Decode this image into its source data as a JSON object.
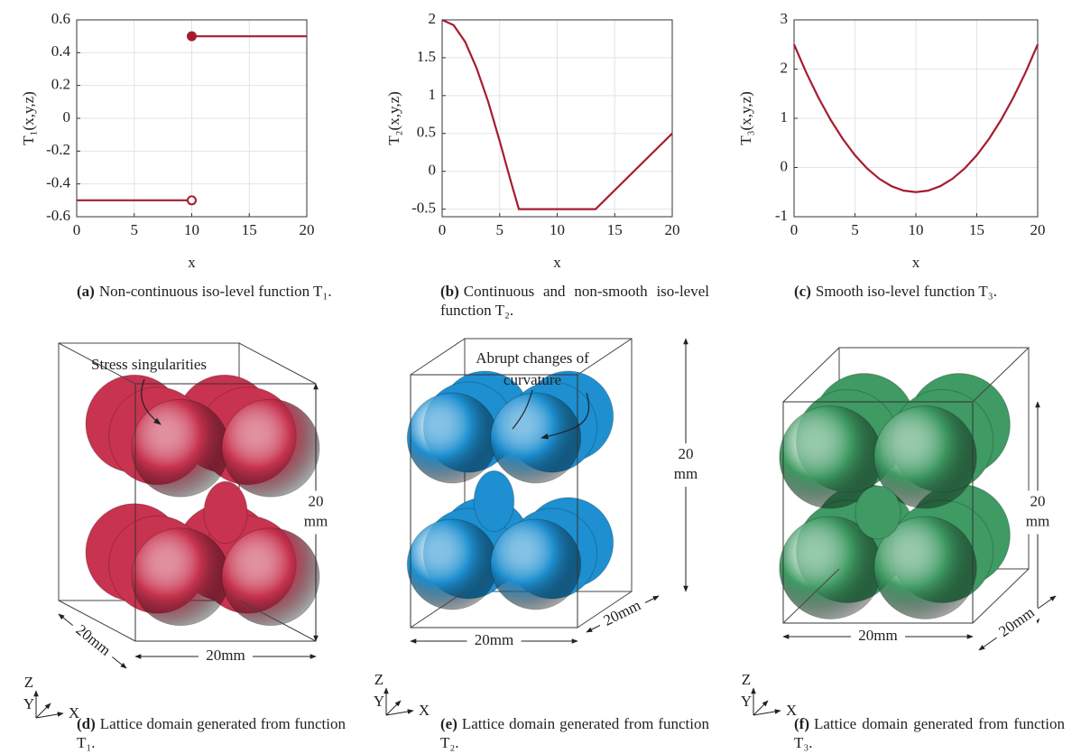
{
  "chart_data": [
    {
      "type": "line",
      "ylabel": "T₁(x,y,z)",
      "xlabel": "x",
      "xlim": [
        0,
        20
      ],
      "xticks": [
        0,
        5,
        10,
        15,
        20
      ],
      "ylim": [
        -0.6,
        0.6
      ],
      "yticks": [
        -0.6,
        -0.4,
        -0.2,
        0,
        0.2,
        0.4,
        0.6
      ],
      "grid": true,
      "series": [
        {
          "color": "#a51c30",
          "x": [
            0,
            10
          ],
          "values": [
            -0.5,
            -0.5
          ]
        },
        {
          "color": "#a51c30",
          "x": [
            10,
            20
          ],
          "values": [
            0.5,
            0.5
          ]
        }
      ],
      "markers": [
        {
          "x": 10,
          "y": -0.5,
          "filled": false,
          "color": "#a51c30"
        },
        {
          "x": 10,
          "y": 0.5,
          "filled": true,
          "color": "#a51c30"
        }
      ]
    },
    {
      "type": "line",
      "ylabel": "T₂(x,y,z)",
      "xlabel": "x",
      "xlim": [
        0,
        20
      ],
      "xticks": [
        0,
        5,
        10,
        15,
        20
      ],
      "ylim": [
        -0.6,
        2
      ],
      "yticks": [
        -0.5,
        0,
        0.5,
        1,
        1.5,
        2
      ],
      "grid": true,
      "series": [
        {
          "color": "#a51c30",
          "x": [
            0,
            1,
            2,
            3,
            4,
            5,
            6,
            6.67,
            13.33,
            20
          ],
          "values": [
            2,
            1.93,
            1.71,
            1.36,
            0.92,
            0.4,
            -0.15,
            -0.5,
            -0.5,
            0.5
          ]
        }
      ]
    },
    {
      "type": "line",
      "ylabel": "T₃(x,y,z)",
      "xlabel": "x",
      "xlim": [
        0,
        20
      ],
      "xticks": [
        0,
        5,
        10,
        15,
        20
      ],
      "ylim": [
        -1,
        3
      ],
      "yticks": [
        -1,
        0,
        1,
        2,
        3
      ],
      "grid": true,
      "series": [
        {
          "color": "#a51c30",
          "x": [
            0,
            1,
            2,
            3,
            4,
            5,
            6,
            7,
            8,
            9,
            10,
            11,
            12,
            13,
            14,
            15,
            16,
            17,
            18,
            19,
            20
          ],
          "values": [
            2.5,
            1.93,
            1.42,
            0.97,
            0.58,
            0.25,
            -0.02,
            -0.23,
            -0.38,
            -0.47,
            -0.5,
            -0.47,
            -0.38,
            -0.23,
            -0.02,
            0.25,
            0.58,
            0.97,
            1.42,
            1.93,
            2.5
          ]
        }
      ]
    }
  ],
  "renders": [
    {
      "color": "#c8334f",
      "annotation": [
        "Stress singularities"
      ],
      "height_label": [
        "20",
        "mm"
      ],
      "width_label": "20mm",
      "depth_label": "20mm",
      "axes": [
        "Z",
        "Y",
        "X"
      ]
    },
    {
      "color": "#1e8fd0",
      "annotation": [
        "Abrupt changes of",
        "curvature"
      ],
      "height_label": [
        "20",
        "mm"
      ],
      "width_label": "20mm",
      "depth_label": "20mm",
      "axes": [
        "Z",
        "Y",
        "X"
      ]
    },
    {
      "color": "#3f9a63",
      "annotation": [],
      "height_label": [
        "20",
        "mm"
      ],
      "width_label": "20mm",
      "depth_label": "20mm",
      "axes": [
        "Z",
        "Y",
        "X"
      ]
    }
  ],
  "captions": [
    {
      "label": "(a)",
      "text": "Non-continuous iso-level function T₁."
    },
    {
      "label": "(b)",
      "text": "Continuous and non-smooth iso-level function T₂."
    },
    {
      "label": "(c)",
      "text": "Smooth iso-level function T₃."
    },
    {
      "label": "(d)",
      "text": "Lattice domain generated from function T₁."
    },
    {
      "label": "(e)",
      "text": "Lattice domain generated from function T₂."
    },
    {
      "label": "(f)",
      "text": "Lattice domain generated from function T₃."
    }
  ]
}
